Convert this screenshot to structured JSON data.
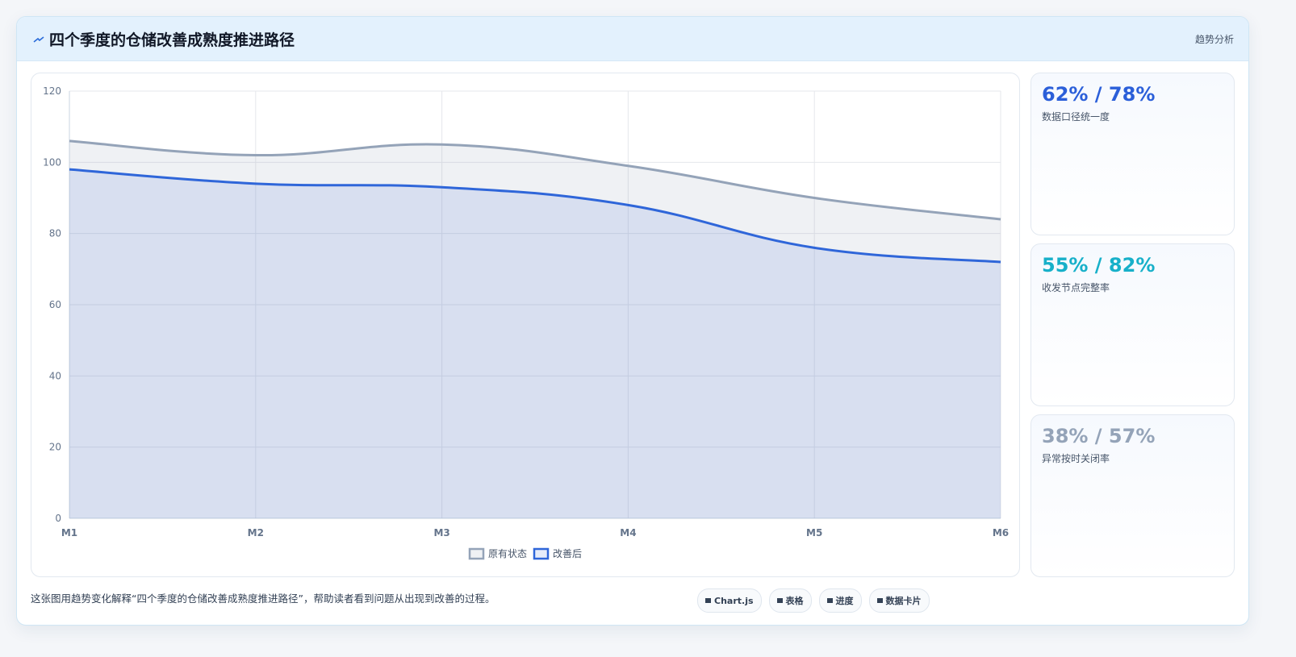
{
  "header": {
    "title": "四个季度的仓储改善成熟度推进路径",
    "tag": "趋势分析"
  },
  "chart_data": {
    "type": "line",
    "area": true,
    "categories": [
      "M1",
      "M2",
      "M3",
      "M4",
      "M5",
      "M6"
    ],
    "series": [
      {
        "name": "原有状态",
        "color": "#94a3b8",
        "values": [
          106,
          102,
          105,
          99,
          90,
          84
        ]
      },
      {
        "name": "改善后",
        "color": "#2f66d9",
        "values": [
          98,
          94,
          93,
          88,
          76,
          72
        ]
      }
    ],
    "ylim": [
      0,
      120
    ],
    "yticks": [
      0,
      20,
      40,
      60,
      80,
      100,
      120
    ],
    "grid": true,
    "legend": "bottom"
  },
  "cards": [
    {
      "value": "62% / 78%",
      "label": "数据口径统一度",
      "color": "#2b5fd9"
    },
    {
      "value": "55% / 82%",
      "label": "收发节点完整率",
      "color": "#17b0c9"
    },
    {
      "value": "38% / 57%",
      "label": "异常按时关闭率",
      "color": "#94a3b8"
    }
  ],
  "footer": {
    "text": "这张图用趋势变化解释“四个季度的仓储改善成熟度推进路径”，帮助读者看到问题从出现到改善的过程。",
    "tags": [
      "Chart.js",
      "表格",
      "进度",
      "数据卡片"
    ]
  }
}
